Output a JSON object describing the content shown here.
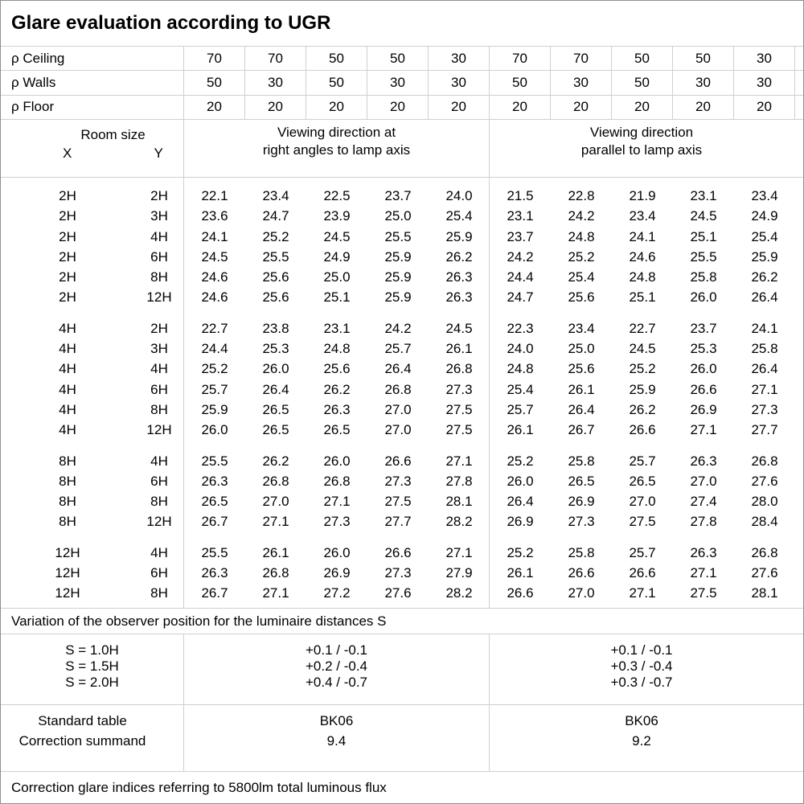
{
  "title": "Glare evaluation according to UGR",
  "reflectances": [
    {
      "label": "ρ Ceiling",
      "values": [
        "70",
        "70",
        "50",
        "50",
        "30",
        "70",
        "70",
        "50",
        "50",
        "30"
      ]
    },
    {
      "label": "ρ Walls",
      "values": [
        "50",
        "30",
        "50",
        "30",
        "30",
        "50",
        "30",
        "50",
        "30",
        "30"
      ]
    },
    {
      "label": "ρ Floor",
      "values": [
        "20",
        "20",
        "20",
        "20",
        "20",
        "20",
        "20",
        "20",
        "20",
        "20"
      ]
    }
  ],
  "header": {
    "room_size_label": "Room size",
    "x_label": "X",
    "y_label": "Y",
    "crosswise_heading": [
      "Viewing direction at",
      "right angles to lamp axis"
    ],
    "parallel_heading": [
      "Viewing direction",
      "parallel to lamp axis"
    ]
  },
  "ugr_blocks": [
    {
      "rows": [
        {
          "x": "2H",
          "y": "2H",
          "crosswise": [
            "22.1",
            "23.4",
            "22.5",
            "23.7",
            "24.0"
          ],
          "parallel": [
            "21.5",
            "22.8",
            "21.9",
            "23.1",
            "23.4"
          ]
        },
        {
          "x": "2H",
          "y": "3H",
          "crosswise": [
            "23.6",
            "24.7",
            "23.9",
            "25.0",
            "25.4"
          ],
          "parallel": [
            "23.1",
            "24.2",
            "23.4",
            "24.5",
            "24.9"
          ]
        },
        {
          "x": "2H",
          "y": "4H",
          "crosswise": [
            "24.1",
            "25.2",
            "24.5",
            "25.5",
            "25.9"
          ],
          "parallel": [
            "23.7",
            "24.8",
            "24.1",
            "25.1",
            "25.4"
          ]
        },
        {
          "x": "2H",
          "y": "6H",
          "crosswise": [
            "24.5",
            "25.5",
            "24.9",
            "25.9",
            "26.2"
          ],
          "parallel": [
            "24.2",
            "25.2",
            "24.6",
            "25.5",
            "25.9"
          ]
        },
        {
          "x": "2H",
          "y": "8H",
          "crosswise": [
            "24.6",
            "25.6",
            "25.0",
            "25.9",
            "26.3"
          ],
          "parallel": [
            "24.4",
            "25.4",
            "24.8",
            "25.8",
            "26.2"
          ]
        },
        {
          "x": "2H",
          "y": "12H",
          "crosswise": [
            "24.6",
            "25.6",
            "25.1",
            "25.9",
            "26.3"
          ],
          "parallel": [
            "24.7",
            "25.6",
            "25.1",
            "26.0",
            "26.4"
          ]
        }
      ]
    },
    {
      "rows": [
        {
          "x": "4H",
          "y": "2H",
          "crosswise": [
            "22.7",
            "23.8",
            "23.1",
            "24.2",
            "24.5"
          ],
          "parallel": [
            "22.3",
            "23.4",
            "22.7",
            "23.7",
            "24.1"
          ]
        },
        {
          "x": "4H",
          "y": "3H",
          "crosswise": [
            "24.4",
            "25.3",
            "24.8",
            "25.7",
            "26.1"
          ],
          "parallel": [
            "24.0",
            "25.0",
            "24.5",
            "25.3",
            "25.8"
          ]
        },
        {
          "x": "4H",
          "y": "4H",
          "crosswise": [
            "25.2",
            "26.0",
            "25.6",
            "26.4",
            "26.8"
          ],
          "parallel": [
            "24.8",
            "25.6",
            "25.2",
            "26.0",
            "26.4"
          ]
        },
        {
          "x": "4H",
          "y": "6H",
          "crosswise": [
            "25.7",
            "26.4",
            "26.2",
            "26.8",
            "27.3"
          ],
          "parallel": [
            "25.4",
            "26.1",
            "25.9",
            "26.6",
            "27.1"
          ]
        },
        {
          "x": "4H",
          "y": "8H",
          "crosswise": [
            "25.9",
            "26.5",
            "26.3",
            "27.0",
            "27.5"
          ],
          "parallel": [
            "25.7",
            "26.4",
            "26.2",
            "26.9",
            "27.3"
          ]
        },
        {
          "x": "4H",
          "y": "12H",
          "crosswise": [
            "26.0",
            "26.5",
            "26.5",
            "27.0",
            "27.5"
          ],
          "parallel": [
            "26.1",
            "26.7",
            "26.6",
            "27.1",
            "27.7"
          ]
        }
      ]
    },
    {
      "rows": [
        {
          "x": "8H",
          "y": "4H",
          "crosswise": [
            "25.5",
            "26.2",
            "26.0",
            "26.6",
            "27.1"
          ],
          "parallel": [
            "25.2",
            "25.8",
            "25.7",
            "26.3",
            "26.8"
          ]
        },
        {
          "x": "8H",
          "y": "6H",
          "crosswise": [
            "26.3",
            "26.8",
            "26.8",
            "27.3",
            "27.8"
          ],
          "parallel": [
            "26.0",
            "26.5",
            "26.5",
            "27.0",
            "27.6"
          ]
        },
        {
          "x": "8H",
          "y": "8H",
          "crosswise": [
            "26.5",
            "27.0",
            "27.1",
            "27.5",
            "28.1"
          ],
          "parallel": [
            "26.4",
            "26.9",
            "27.0",
            "27.4",
            "28.0"
          ]
        },
        {
          "x": "8H",
          "y": "12H",
          "crosswise": [
            "26.7",
            "27.1",
            "27.3",
            "27.7",
            "28.2"
          ],
          "parallel": [
            "26.9",
            "27.3",
            "27.5",
            "27.8",
            "28.4"
          ]
        }
      ]
    },
    {
      "rows": [
        {
          "x": "12H",
          "y": "4H",
          "crosswise": [
            "25.5",
            "26.1",
            "26.0",
            "26.6",
            "27.1"
          ],
          "parallel": [
            "25.2",
            "25.8",
            "25.7",
            "26.3",
            "26.8"
          ]
        },
        {
          "x": "12H",
          "y": "6H",
          "crosswise": [
            "26.3",
            "26.8",
            "26.9",
            "27.3",
            "27.9"
          ],
          "parallel": [
            "26.1",
            "26.6",
            "26.6",
            "27.1",
            "27.6"
          ]
        },
        {
          "x": "12H",
          "y": "8H",
          "crosswise": [
            "26.7",
            "27.1",
            "27.2",
            "27.6",
            "28.2"
          ],
          "parallel": [
            "26.6",
            "27.0",
            "27.1",
            "27.5",
            "28.1"
          ]
        }
      ]
    }
  ],
  "variation_note": "Variation of the observer position for the luminaire distances S",
  "spacing_variations": [
    {
      "label": "S = 1.0H",
      "crosswise": "+0.1 / -0.1",
      "parallel": "+0.1 / -0.1"
    },
    {
      "label": "S = 1.5H",
      "crosswise": "+0.2 / -0.4",
      "parallel": "+0.3 / -0.4"
    },
    {
      "label": "S = 2.0H",
      "crosswise": "+0.4 / -0.7",
      "parallel": "+0.3 / -0.7"
    }
  ],
  "standard": {
    "labels": [
      "Standard table",
      "Correction summand"
    ],
    "crosswise": [
      "BK06",
      "9.4"
    ],
    "parallel": [
      "BK06",
      "9.2"
    ]
  },
  "footer_note": "Correction glare indices referring to 5800lm total luminous flux"
}
